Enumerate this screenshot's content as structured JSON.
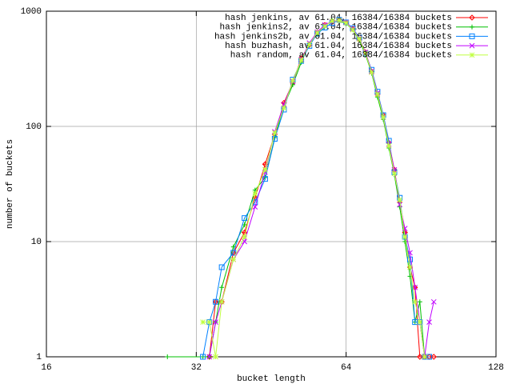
{
  "chart_data": {
    "type": "line",
    "x_label": "bucket length",
    "y_label": "number of buckets",
    "xlog": true,
    "ylog": true,
    "grid": true,
    "legend": "top-right",
    "xlim": [
      16,
      128
    ],
    "xticks": [
      16,
      32,
      64,
      128
    ],
    "ylim": [
      1,
      1000
    ],
    "yticks": [
      1,
      10,
      100,
      1000
    ],
    "x": [
      28,
      33,
      34,
      35,
      36,
      38,
      40,
      42,
      44,
      46,
      48,
      50,
      52,
      54,
      56,
      58,
      60,
      62,
      64,
      66,
      68,
      70,
      72,
      74,
      76,
      78,
      80,
      82,
      84,
      86,
      88,
      90,
      92,
      94,
      96
    ],
    "series": [
      {
        "name": "hash jenkins, av 61.04, 16384/16384 buckets",
        "color": "#ff0000",
        "values": [
          null,
          null,
          1,
          3,
          3,
          8,
          12,
          24,
          47,
          85,
          160,
          240,
          390,
          510,
          650,
          760,
          810,
          840,
          790,
          700,
          570,
          440,
          300,
          190,
          125,
          72,
          42,
          22,
          12,
          6,
          4,
          1,
          1,
          1,
          1
        ]
      },
      {
        "name": "hash jenkins2, av 61.04, 16384/16384 buckets",
        "color": "#00c000",
        "values": [
          1,
          1,
          1,
          2,
          4,
          9,
          14,
          28,
          36,
          80,
          150,
          230,
          360,
          520,
          630,
          740,
          830,
          820,
          780,
          690,
          560,
          420,
          290,
          180,
          115,
          65,
          38,
          20,
          10,
          5,
          2,
          3,
          1,
          null,
          null
        ]
      },
      {
        "name": "hash jenkins2b, av 61.04, 16384/16384 buckets",
        "color": "#0080ff",
        "values": [
          null,
          1,
          2,
          3,
          6,
          8,
          16,
          22,
          35,
          78,
          140,
          255,
          370,
          500,
          640,
          720,
          790,
          840,
          800,
          710,
          590,
          430,
          310,
          200,
          125,
          75,
          40,
          24,
          11,
          7,
          2,
          2,
          1,
          1,
          null
        ]
      },
      {
        "name": "hash buzhash, av 61.04, 16384/16384 buckets",
        "color": "#c000ff",
        "values": [
          null,
          null,
          1,
          2,
          3,
          7,
          10,
          20,
          40,
          90,
          155,
          245,
          380,
          530,
          660,
          760,
          810,
          830,
          800,
          700,
          580,
          440,
          300,
          195,
          120,
          70,
          42,
          21,
          13,
          8,
          4,
          2,
          1,
          2,
          3
        ]
      },
      {
        "name": "hash random, av 61.04, 16384/16384 buckets",
        "color": "#c0ff40",
        "values": [
          null,
          2,
          2,
          1,
          3,
          7,
          11,
          26,
          42,
          88,
          145,
          250,
          375,
          515,
          650,
          740,
          820,
          830,
          790,
          690,
          575,
          430,
          295,
          190,
          120,
          68,
          39,
          23,
          11,
          6,
          3,
          2,
          1,
          null,
          null
        ]
      }
    ]
  }
}
